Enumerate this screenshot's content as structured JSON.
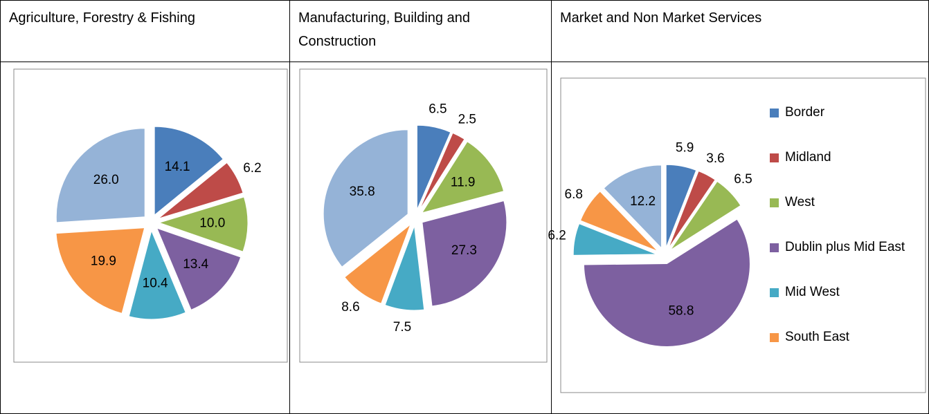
{
  "chart_data": [
    {
      "type": "pie",
      "title": "Agriculture, Forestry & Fishing",
      "values": [
        14.1,
        6.2,
        10.0,
        13.4,
        10.4,
        19.9,
        26.0
      ],
      "value_labels": [
        "14.1",
        "6.2",
        "10.0",
        "13.4",
        "10.4",
        "19.9",
        "26.0"
      ],
      "colors": [
        "#4a7ebb",
        "#be4b48",
        "#98b954",
        "#7d60a0",
        "#46aac5",
        "#f79646",
        "#95b3d7"
      ]
    },
    {
      "type": "pie",
      "title": "Manufacturing, Building and Construction",
      "values": [
        6.5,
        2.5,
        11.9,
        27.3,
        7.5,
        8.6,
        35.8
      ],
      "value_labels": [
        "6.5",
        "2.5",
        "11.9",
        "27.3",
        "7.5",
        "8.6",
        "35.8"
      ],
      "colors": [
        "#4a7ebb",
        "#be4b48",
        "#98b954",
        "#7d60a0",
        "#46aac5",
        "#f79646",
        "#95b3d7"
      ]
    },
    {
      "type": "pie",
      "title": "Market and Non Market Services",
      "categories": [
        "Border",
        "Midland",
        "West",
        "Dublin plus Mid East",
        "Mid West",
        "South East",
        null
      ],
      "values": [
        5.9,
        3.6,
        6.5,
        58.8,
        6.2,
        6.8,
        12.2
      ],
      "value_labels": [
        "5.9",
        "3.6",
        "6.5",
        "58.8",
        "6.2",
        "6.8",
        "12.2"
      ],
      "colors": [
        "#4a7ebb",
        "#be4b48",
        "#98b954",
        "#7d60a0",
        "#46aac5",
        "#f79646",
        "#95b3d7"
      ],
      "legend": "right"
    }
  ]
}
